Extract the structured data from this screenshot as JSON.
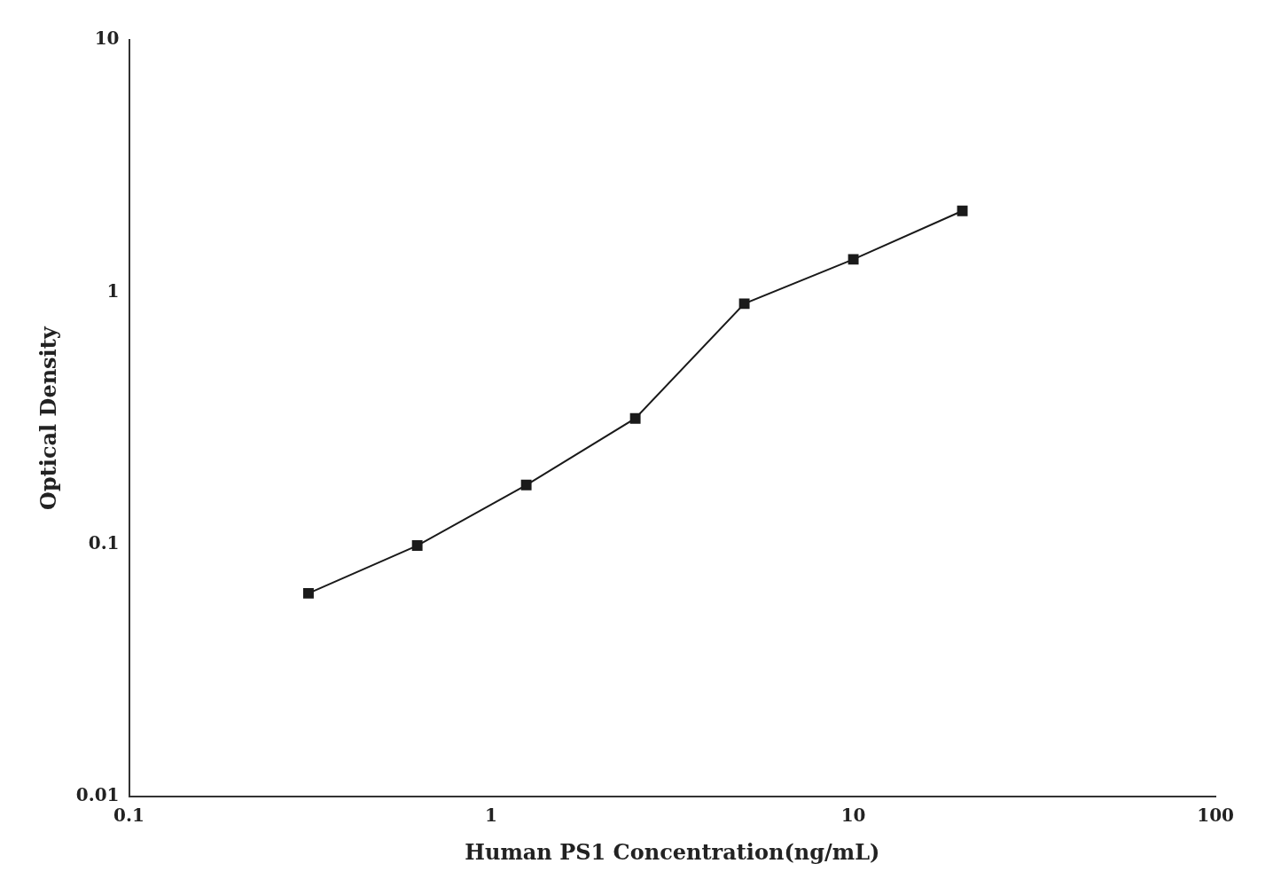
{
  "chart_data": {
    "type": "line",
    "x": [
      0.313,
      0.625,
      1.25,
      2.5,
      5.0,
      10.0,
      20.0
    ],
    "values": [
      0.064,
      0.099,
      0.172,
      0.316,
      0.9,
      1.35,
      2.1
    ],
    "xlabel": "Human PS1 Concentration(ng/mL)",
    "ylabel": "Optical Density",
    "xlim": [
      0.1,
      100
    ],
    "ylim": [
      0.01,
      10
    ],
    "xticks": [
      0.1,
      1,
      10,
      100
    ],
    "yticks": [
      0.01,
      0.1,
      1,
      10
    ],
    "log": true,
    "grid": false,
    "color": "#1a1a1a",
    "marker": "square"
  }
}
